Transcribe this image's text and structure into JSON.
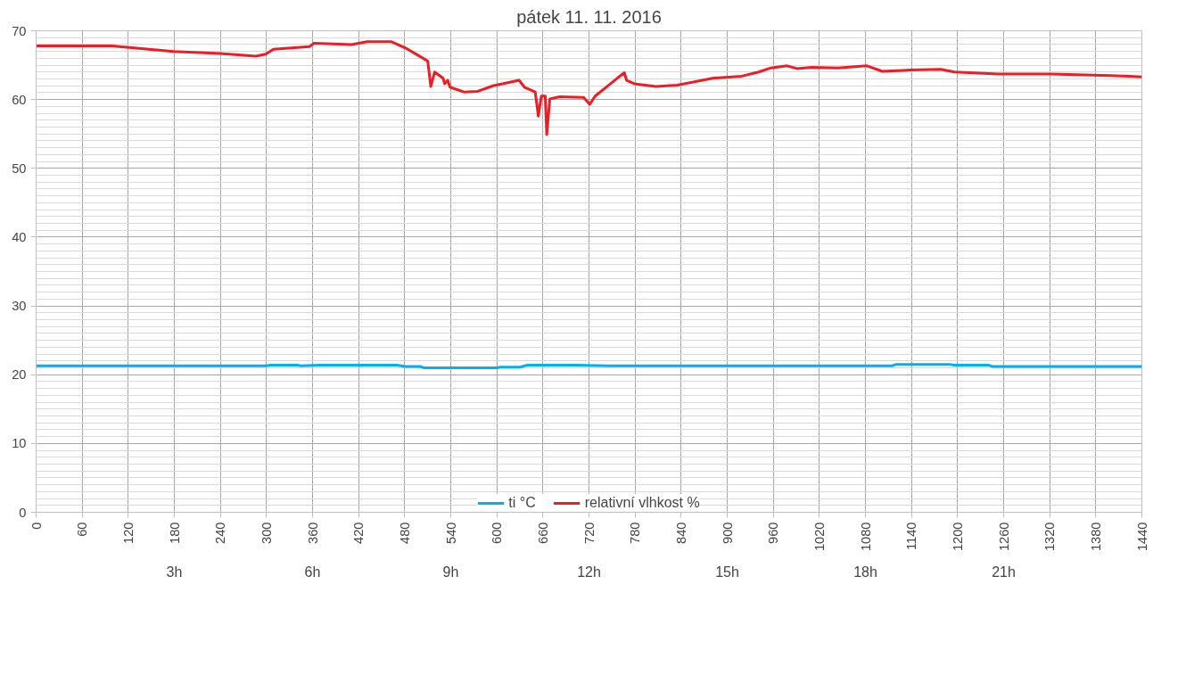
{
  "chart_data": {
    "type": "line",
    "title": "pátek 11. 11. 2016",
    "xlim": [
      0,
      1440
    ],
    "xticks": [
      0,
      60,
      120,
      180,
      240,
      300,
      360,
      420,
      480,
      540,
      600,
      660,
      720,
      780,
      840,
      900,
      960,
      1020,
      1080,
      1140,
      1200,
      1260,
      1320,
      1380,
      1440
    ],
    "ylim": [
      0,
      70
    ],
    "yticks": [
      0,
      10,
      20,
      30,
      40,
      50,
      60,
      70
    ],
    "grid": true,
    "legend": "bottom",
    "marker": "none",
    "line_style": "solid",
    "annotations": [
      "3h",
      "6h",
      "9h",
      "12h",
      "15h",
      "18h",
      "21h"
    ],
    "series": [
      {
        "name": "ti °C",
        "color": "#00b0f0",
        "x": [
          0,
          300,
          305,
          340,
          345,
          370,
          470,
          480,
          500,
          505,
          600,
          605,
          630,
          640,
          700,
          745,
          1115,
          1120,
          1190,
          1195,
          1240,
          1245,
          1440
        ],
        "values": [
          21.3,
          21.3,
          21.4,
          21.4,
          21.3,
          21.4,
          21.4,
          21.2,
          21.2,
          21.0,
          21.0,
          21.1,
          21.1,
          21.4,
          21.4,
          21.3,
          21.3,
          21.5,
          21.5,
          21.4,
          21.4,
          21.2,
          21.2
        ]
      },
      {
        "name": "relativní vlhkost %",
        "color": "#ee1c25",
        "x": [
          0,
          99,
          179,
          240,
          286,
          299,
          309,
          356,
          362,
          411,
          431,
          463,
          481,
          507,
          510,
          514,
          519,
          530,
          532,
          536,
          539,
          557,
          575,
          595,
          629,
          636,
          650,
          654,
          658,
          663,
          665,
          669,
          682,
          713,
          721,
          728,
          747,
          759,
          766,
          769,
          779,
          807,
          835,
          881,
          919,
          941,
          957,
          978,
          991,
          1010,
          1044,
          1082,
          1102,
          1139,
          1178,
          1196,
          1253,
          1322,
          1398,
          1440
        ],
        "values": [
          67.8,
          67.8,
          67.0,
          66.7,
          66.3,
          66.6,
          67.3,
          67.7,
          68.2,
          68.0,
          68.4,
          68.4,
          67.5,
          65.8,
          65.6,
          61.9,
          64.0,
          63.1,
          62.3,
          62.8,
          61.8,
          61.1,
          61.2,
          62.0,
          62.8,
          61.8,
          61.1,
          57.6,
          60.5,
          60.5,
          54.9,
          60.1,
          60.4,
          60.3,
          59.3,
          60.5,
          62.2,
          63.3,
          63.9,
          62.8,
          62.3,
          61.9,
          62.1,
          63.1,
          63.4,
          64.0,
          64.6,
          64.9,
          64.5,
          64.7,
          64.6,
          64.9,
          64.1,
          64.3,
          64.4,
          64.0,
          63.7,
          63.7,
          63.5,
          63.3
        ]
      }
    ]
  }
}
